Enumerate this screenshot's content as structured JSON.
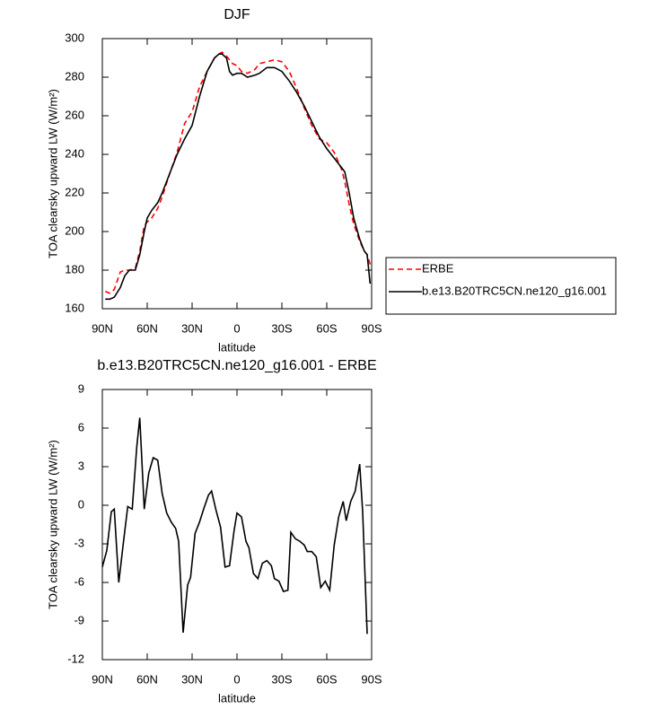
{
  "chart_data": [
    {
      "type": "line",
      "title": "DJF",
      "xlabel": "latitude",
      "ylabel": "TOA clearsky upward LW (W/m²)",
      "x": [
        88,
        85,
        82,
        78,
        75,
        72,
        68,
        65,
        62,
        60,
        57,
        53,
        50,
        45,
        40,
        35,
        30,
        25,
        20,
        15,
        12,
        10,
        7,
        5,
        3,
        0,
        -3,
        -7,
        -12,
        -15,
        -20,
        -25,
        -30,
        -35,
        -40,
        -45,
        -50,
        -55,
        -60,
        -65,
        -70,
        -72,
        -75,
        -78,
        -82,
        -85,
        -87,
        -89
      ],
      "series": [
        {
          "name": "ERBE",
          "color": "#ff0000",
          "dashed": true,
          "values": [
            169,
            168,
            170,
            179,
            180,
            180,
            181,
            190,
            203,
            205,
            207,
            212,
            218,
            230,
            241,
            256,
            262,
            275,
            283,
            290,
            292,
            293,
            291,
            289,
            287,
            286,
            283,
            282,
            284,
            287,
            288,
            289,
            288,
            283,
            274,
            264,
            255,
            248,
            246,
            241,
            232,
            226,
            214,
            204,
            195,
            190,
            188,
            183
          ]
        },
        {
          "name": "b.e13.B20TRC5CN.ne120_g16.001",
          "color": "#000000",
          "dashed": false,
          "values": [
            165,
            165,
            166,
            171,
            177,
            180,
            180,
            188,
            200,
            207,
            211,
            215,
            220,
            230,
            240,
            248,
            255,
            270,
            283,
            290,
            292,
            292,
            290,
            283,
            281,
            282,
            282,
            280,
            281,
            282,
            285,
            285,
            283,
            278,
            272,
            265,
            257,
            249,
            243,
            238,
            233,
            231,
            220,
            207,
            196,
            190,
            188,
            173
          ]
        }
      ],
      "xlim": [
        90,
        -90
      ],
      "xticks": [
        {
          "value": 90,
          "label": "90N"
        },
        {
          "value": 60,
          "label": "60N"
        },
        {
          "value": 30,
          "label": "30N"
        },
        0,
        {
          "value": -30,
          "label": "30S"
        },
        {
          "value": -60,
          "label": "60S"
        },
        {
          "value": -90,
          "label": "90S"
        }
      ],
      "ylim": [
        160,
        300
      ],
      "yticks": [
        160,
        180,
        200,
        220,
        240,
        260,
        280,
        300
      ],
      "legend": "right"
    },
    {
      "type": "line",
      "title": "b.e13.B20TRC5CN.ne120_g16.001 - ERBE",
      "xlabel": "latitude",
      "ylabel": "TOA clearsky upward LW (W/m²)",
      "x": [
        90,
        87,
        84,
        82,
        79,
        76,
        73,
        70,
        67,
        65,
        62,
        59,
        56,
        53,
        50,
        47,
        44,
        41,
        39,
        36,
        33,
        31,
        28,
        25,
        22,
        19,
        17,
        14,
        11,
        8,
        5,
        2,
        0,
        -3,
        -6,
        -8,
        -11,
        -14,
        -17,
        -20,
        -23,
        -25,
        -28,
        -31,
        -34,
        -36,
        -39,
        -42,
        -45,
        -47,
        -50,
        -53,
        -56,
        -59,
        -62,
        -65,
        -68,
        -71,
        -73,
        -76,
        -79,
        -82,
        -84,
        -87
      ],
      "values": [
        -4.8,
        -3.5,
        -0.5,
        -0.3,
        -6,
        -3,
        -0.1,
        -0.3,
        4.5,
        6.8,
        -0.3,
        2.5,
        3.7,
        3.5,
        0.9,
        -0.6,
        -1.3,
        -1.8,
        -2.8,
        -9.9,
        -6.2,
        -5.6,
        -2.2,
        -1.3,
        -0.2,
        0.8,
        1.1,
        -0.4,
        -1.7,
        -4.8,
        -4.7,
        -2.0,
        -0.6,
        -0.9,
        -2.8,
        -3.3,
        -5.3,
        -5.7,
        -4.5,
        -4.3,
        -4.7,
        -5.7,
        -5.9,
        -6.7,
        -6.6,
        -2.1,
        -2.6,
        -2.8,
        -3.1,
        -3.6,
        -3.6,
        -4.0,
        -6.4,
        -5.9,
        -6.6,
        -3.1,
        -0.9,
        0.3,
        -1.2,
        0.3,
        1.1,
        3.2,
        -0.5,
        -10.0
      ],
      "color": "#000000",
      "xlim": [
        90,
        -90
      ],
      "xticks": [
        {
          "value": 90,
          "label": "90N"
        },
        {
          "value": 60,
          "label": "60N"
        },
        {
          "value": 30,
          "label": "30N"
        },
        0,
        {
          "value": -30,
          "label": "30S"
        },
        {
          "value": -60,
          "label": "60S"
        },
        {
          "value": -90,
          "label": "90S"
        }
      ],
      "ylim": [
        -12,
        9
      ],
      "yticks": [
        -12,
        -9,
        -6,
        -3,
        0,
        3,
        6,
        9
      ]
    }
  ]
}
